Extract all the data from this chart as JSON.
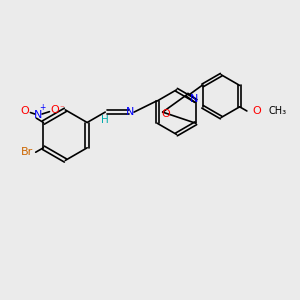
{
  "bg_color": "#ebebeb",
  "bond_color": "#000000",
  "atom_colors": {
    "Br": "#cc6600",
    "N": "#0000ff",
    "O": "#ff0000",
    "H": "#00aaaa",
    "C": "#000000"
  },
  "font_size": 7.5,
  "lw": 1.2
}
